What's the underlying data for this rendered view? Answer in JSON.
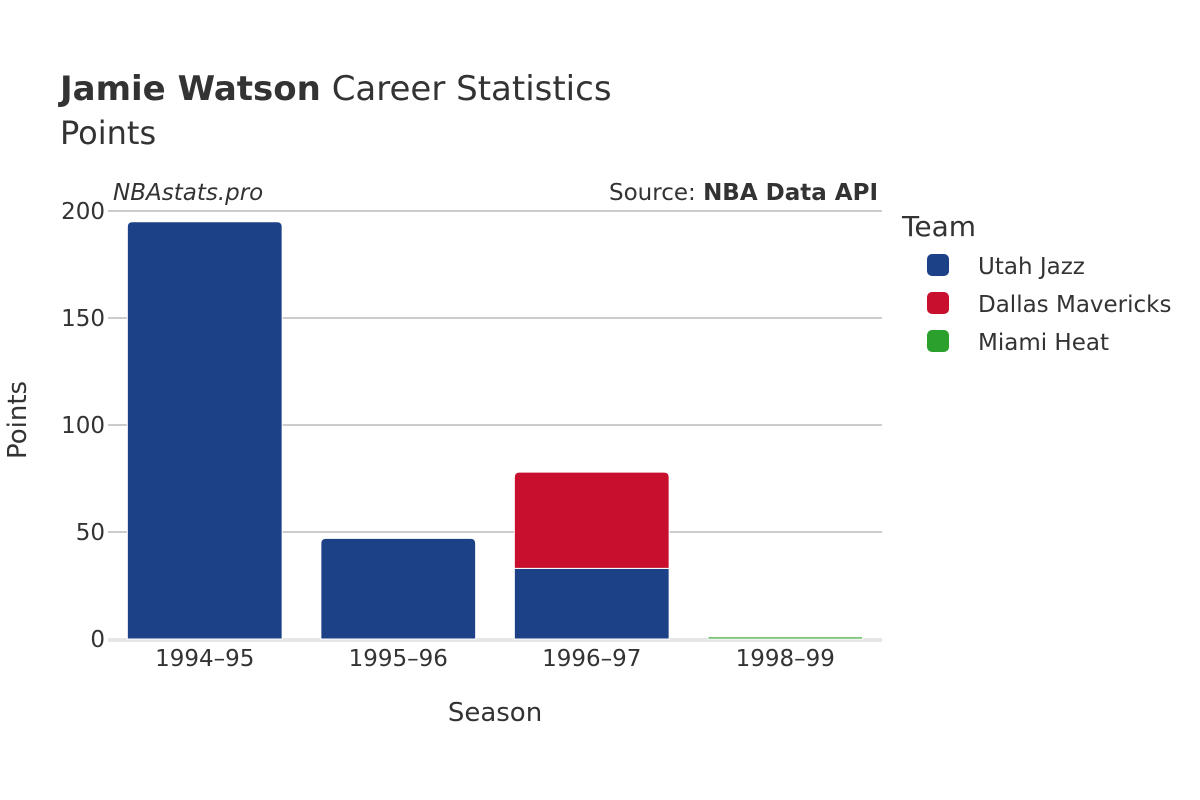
{
  "chart_data": {
    "type": "bar",
    "stacked": true,
    "title_bold": "Jamie Watson",
    "title_rest": "Career Statistics",
    "subtitle": "Points",
    "watermark": "NBAstats.pro",
    "source_prefix": "Source: ",
    "source_name": "NBA Data API",
    "xlabel": "Season",
    "ylabel": "Points",
    "ylim": [
      0,
      200
    ],
    "yticks": [
      0,
      50,
      100,
      150,
      200
    ],
    "categories": [
      "1994–95",
      "1995–96",
      "1996–97",
      "1998–99"
    ],
    "legend_title": "Team",
    "legend_position": "right",
    "series": [
      {
        "name": "Utah Jazz",
        "color": "#1c4187",
        "values": [
          195,
          47,
          33,
          0
        ]
      },
      {
        "name": "Dallas Mavericks",
        "color": "#c8102e",
        "values": [
          0,
          0,
          45,
          0
        ]
      },
      {
        "name": "Miami Heat",
        "color": "#2ca02c",
        "values": [
          0,
          0,
          0,
          1
        ]
      }
    ]
  }
}
